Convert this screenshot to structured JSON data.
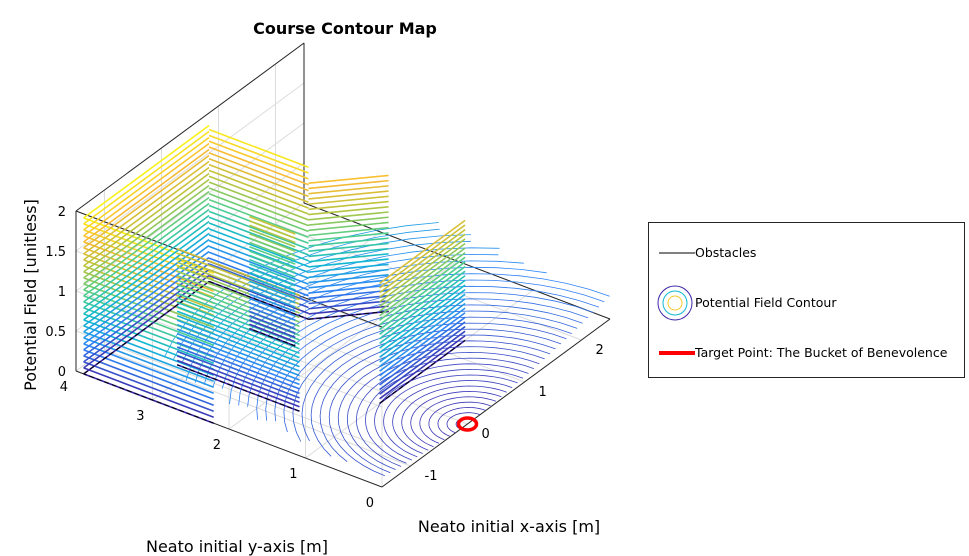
{
  "chart_data": {
    "type": "surface-contour-3d",
    "title": "Course Contour Map",
    "xlabel": "Neato initial x-axis [m]",
    "ylabel": "Neato initial y-axis [m]",
    "zlabel": "Potential Field [unitless]",
    "x_ticks": [
      "-1",
      "0",
      "1",
      "2"
    ],
    "y_ticks": [
      "0",
      "1",
      "2",
      "3",
      "4"
    ],
    "z_ticks": [
      "0",
      "0.5",
      "1",
      "1.5",
      "2"
    ],
    "xlim": [
      -1.5,
      2.5
    ],
    "ylim": [
      0,
      4
    ],
    "zlim": [
      0,
      2
    ],
    "grid": true,
    "colormap": "parula",
    "colormap_colors": [
      "#3e26a8",
      "#2e85f7",
      "#10b8d1",
      "#52cf8a",
      "#bbc43a",
      "#f9b934",
      "#f9fb15"
    ],
    "target_point": {
      "x": 0,
      "y": 0,
      "z": 0
    },
    "legend_placement": "right",
    "legend": [
      {
        "label": "Obstacles",
        "style": "line",
        "color": "#000000"
      },
      {
        "label": "Potential Field Contour",
        "style": "contour",
        "color": "#3e26a8"
      },
      {
        "label": "Target Point: The Bucket of Benevolence",
        "style": "line",
        "color": "#ff0000"
      }
    ]
  }
}
